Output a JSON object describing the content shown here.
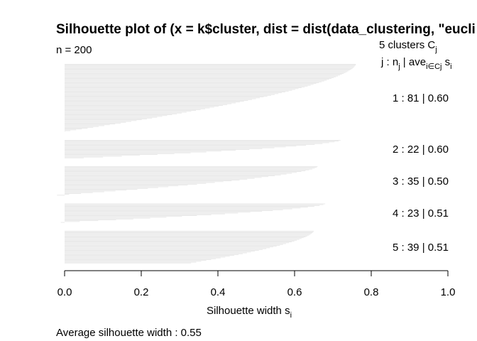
{
  "chart_data": {
    "type": "silhouette",
    "title": "Silhouette plot of (x = k$cluster, dist = dist(data_clustering, \"eucli",
    "n_label": "n = 200",
    "header": {
      "clusters_label": "5  clusters  C",
      "clusters_sub": "j",
      "columns_label_a": "j :  n",
      "columns_sub_j": "j",
      "columns_label_b": " | ave",
      "columns_sub_ieCj": "i∈Cj",
      "columns_label_c": "  s",
      "columns_sub_i": "i"
    },
    "xlabel": "Silhouette width s",
    "xlabel_sub": "i",
    "xlim": [
      0,
      1
    ],
    "x_ticks": [
      "0.0",
      "0.2",
      "0.4",
      "0.6",
      "0.8",
      "1.0"
    ],
    "footer": "Average silhouette width :  0.55",
    "bar_color": "#e6e6e6",
    "clusters": [
      {
        "label": "1 :   81  |  0.60",
        "n": 81,
        "ave": 0.6,
        "max": 0.76,
        "min": 0.0
      },
      {
        "label": "2 :   22  |  0.60",
        "n": 22,
        "ave": 0.6,
        "max": 0.72,
        "min": 0.05
      },
      {
        "label": "3 :   35  |  0.50",
        "n": 35,
        "ave": 0.5,
        "max": 0.66,
        "min": -0.02
      },
      {
        "label": "4 :   23  |  0.51",
        "n": 23,
        "ave": 0.51,
        "max": 0.68,
        "min": -0.01
      },
      {
        "label": "5 :   39  |  0.51",
        "n": 39,
        "ave": 0.51,
        "max": 0.65,
        "min": 0.33
      }
    ]
  }
}
